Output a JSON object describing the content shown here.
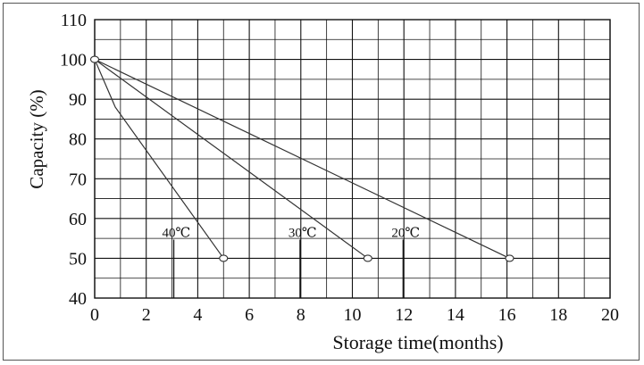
{
  "chart_data": {
    "type": "line",
    "title": "",
    "xlabel": "Storage time(months)",
    "ylabel": "Capacity (%)",
    "xlim": [
      0,
      20
    ],
    "ylim": [
      40,
      110
    ],
    "xticks": [
      "0",
      "2",
      "4",
      "6",
      "8",
      "10",
      "12",
      "14",
      "16",
      "18",
      "20"
    ],
    "yticks": [
      "40",
      "50",
      "60",
      "70",
      "80",
      "90",
      "100",
      "110"
    ],
    "grid": true,
    "legend": "none",
    "colors": {
      "line": "#333333",
      "grid": "#111111"
    },
    "series": [
      {
        "name": "40℃",
        "x": [
          0,
          0.8,
          5
        ],
        "y": [
          100,
          88,
          50
        ]
      },
      {
        "name": "30℃",
        "x": [
          0,
          10.6
        ],
        "y": [
          100,
          50
        ]
      },
      {
        "name": "20℃",
        "x": [
          0,
          16.1
        ],
        "y": [
          100,
          50
        ]
      }
    ]
  }
}
